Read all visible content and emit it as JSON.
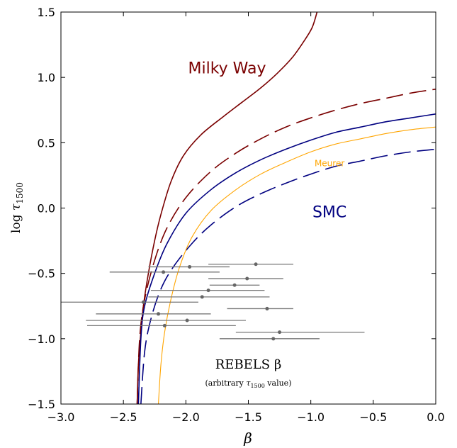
{
  "chart_data": {
    "type": "line",
    "xlabel": "β",
    "ylabel": {
      "prefix": "log ",
      "symbol": "τ",
      "subscript": "1500"
    },
    "xlim": [
      -3.0,
      0.0
    ],
    "ylim": [
      -1.5,
      1.5
    ],
    "x_ticks": [
      -3.0,
      -2.5,
      -2.0,
      -1.5,
      -1.0,
      -0.5,
      0.0
    ],
    "x_tick_labels": [
      "−3.0",
      "−2.5",
      "−2.0",
      "−1.5",
      "−1.0",
      "−0.5",
      "0.0"
    ],
    "y_ticks": [
      -1.5,
      -1.0,
      -0.5,
      0.0,
      0.5,
      1.0,
      1.5
    ],
    "y_tick_labels": [
      "−1.5",
      "−1.0",
      "−0.5",
      "0.0",
      "0.5",
      "1.0",
      "1.5"
    ],
    "grid": false,
    "curves": [
      {
        "color": "#7a0000",
        "style": "solid",
        "width": 1.6,
        "points": [
          [
            -2.39,
            -1.5
          ],
          [
            -2.38,
            -1.2
          ],
          [
            -2.36,
            -0.95
          ],
          [
            -2.34,
            -0.75
          ],
          [
            -2.3,
            -0.5
          ],
          [
            -2.25,
            -0.25
          ],
          [
            -2.2,
            -0.05
          ],
          [
            -2.12,
            0.2
          ],
          [
            -2.02,
            0.4
          ],
          [
            -1.88,
            0.56
          ],
          [
            -1.7,
            0.7
          ],
          [
            -1.55,
            0.81
          ],
          [
            -1.4,
            0.92
          ],
          [
            -1.27,
            1.03
          ],
          [
            -1.15,
            1.15
          ],
          [
            -1.06,
            1.27
          ],
          [
            -0.99,
            1.38
          ],
          [
            -0.95,
            1.5
          ]
        ]
      },
      {
        "color": "#7a0000",
        "style": "dashed",
        "width": 1.6,
        "points": [
          [
            -2.39,
            -1.5
          ],
          [
            -2.37,
            -1.0
          ],
          [
            -2.33,
            -0.7
          ],
          [
            -2.25,
            -0.4
          ],
          [
            -2.15,
            -0.15
          ],
          [
            -2.0,
            0.08
          ],
          [
            -1.8,
            0.28
          ],
          [
            -1.6,
            0.42
          ],
          [
            -1.4,
            0.53
          ],
          [
            -1.2,
            0.62
          ],
          [
            -1.0,
            0.69
          ],
          [
            -0.8,
            0.75
          ],
          [
            -0.6,
            0.8
          ],
          [
            -0.4,
            0.84
          ],
          [
            -0.2,
            0.88
          ],
          [
            0.0,
            0.91
          ]
        ]
      },
      {
        "color": "#000080",
        "style": "solid",
        "width": 1.6,
        "points": [
          [
            -2.38,
            -1.5
          ],
          [
            -2.36,
            -1.0
          ],
          [
            -2.33,
            -0.75
          ],
          [
            -2.25,
            -0.5
          ],
          [
            -2.15,
            -0.27
          ],
          [
            -2.0,
            -0.04
          ],
          [
            -1.8,
            0.14
          ],
          [
            -1.6,
            0.27
          ],
          [
            -1.4,
            0.37
          ],
          [
            -1.2,
            0.45
          ],
          [
            -1.0,
            0.52
          ],
          [
            -0.8,
            0.58
          ],
          [
            -0.6,
            0.62
          ],
          [
            -0.4,
            0.66
          ],
          [
            -0.2,
            0.69
          ],
          [
            0.0,
            0.72
          ]
        ]
      },
      {
        "color": "#000080",
        "style": "dashed",
        "width": 1.6,
        "points": [
          [
            -2.36,
            -1.5
          ],
          [
            -2.33,
            -1.1
          ],
          [
            -2.28,
            -0.85
          ],
          [
            -2.2,
            -0.62
          ],
          [
            -2.1,
            -0.45
          ],
          [
            -1.95,
            -0.27
          ],
          [
            -1.8,
            -0.13
          ],
          [
            -1.6,
            0.01
          ],
          [
            -1.4,
            0.11
          ],
          [
            -1.2,
            0.19
          ],
          [
            -1.0,
            0.26
          ],
          [
            -0.8,
            0.32
          ],
          [
            -0.6,
            0.36
          ],
          [
            -0.4,
            0.4
          ],
          [
            -0.2,
            0.43
          ],
          [
            0.0,
            0.45
          ]
        ]
      },
      {
        "color": "#ffa500",
        "style": "solid",
        "width": 1.1,
        "points": [
          [
            -2.22,
            -1.5
          ],
          [
            -2.2,
            -1.2
          ],
          [
            -2.17,
            -0.95
          ],
          [
            -2.12,
            -0.7
          ],
          [
            -2.05,
            -0.45
          ],
          [
            -1.95,
            -0.22
          ],
          [
            -1.8,
            -0.02
          ],
          [
            -1.6,
            0.14
          ],
          [
            -1.4,
            0.26
          ],
          [
            -1.2,
            0.35
          ],
          [
            -1.0,
            0.43
          ],
          [
            -0.8,
            0.49
          ],
          [
            -0.6,
            0.53
          ],
          [
            -0.4,
            0.57
          ],
          [
            -0.2,
            0.6
          ],
          [
            0.0,
            0.62
          ]
        ]
      }
    ],
    "rebels_points": [
      {
        "x": -1.44,
        "xerr_lo": -1.82,
        "xerr_hi": -1.14,
        "y": -0.43
      },
      {
        "x": -1.97,
        "xerr_lo": -2.3,
        "xerr_hi": -1.65,
        "y": -0.45
      },
      {
        "x": -2.18,
        "xerr_lo": -2.61,
        "xerr_hi": -1.73,
        "y": -0.49
      },
      {
        "x": -1.51,
        "xerr_lo": -1.82,
        "xerr_hi": -1.22,
        "y": -0.54
      },
      {
        "x": -1.61,
        "xerr_lo": -1.81,
        "xerr_hi": -1.41,
        "y": -0.59
      },
      {
        "x": -1.82,
        "xerr_lo": -2.28,
        "xerr_hi": -1.37,
        "y": -0.63
      },
      {
        "x": -1.87,
        "xerr_lo": -2.3,
        "xerr_hi": -1.33,
        "y": -0.68
      },
      {
        "x": -2.34,
        "xerr_lo": -3.0,
        "xerr_hi": -1.9,
        "y": -0.72
      },
      {
        "x": -1.35,
        "xerr_lo": -1.67,
        "xerr_hi": -1.14,
        "y": -0.77
      },
      {
        "x": -2.22,
        "xerr_lo": -2.72,
        "xerr_hi": -1.8,
        "y": -0.81
      },
      {
        "x": -1.99,
        "xerr_lo": -2.8,
        "xerr_hi": -1.52,
        "y": -0.86
      },
      {
        "x": -2.17,
        "xerr_lo": -2.79,
        "xerr_hi": -1.6,
        "y": -0.9
      },
      {
        "x": -1.25,
        "xerr_lo": -1.6,
        "xerr_hi": -0.57,
        "y": -0.95
      },
      {
        "x": -1.3,
        "xerr_lo": -1.73,
        "xerr_hi": -0.93,
        "y": -1.0
      }
    ],
    "annotations": {
      "milky_way": {
        "text": "Milky Way",
        "color": "#7a0000",
        "x": -1.67,
        "y": 1.03
      },
      "smc": {
        "text": "SMC",
        "color": "#000080",
        "x": -0.85,
        "y": -0.07
      },
      "meurer": {
        "text": "Meurer",
        "color": "#ffa500",
        "x": -0.85,
        "y": 0.32
      },
      "rebels_title": {
        "text": "REBELS β",
        "color": "#000000",
        "x": -1.5,
        "y": -1.23
      },
      "rebels_note": {
        "prefix": "(arbitrary ",
        "symbol": "τ",
        "subscript": "1500",
        "suffix": " value)",
        "x": -1.5,
        "y": -1.36
      }
    }
  }
}
